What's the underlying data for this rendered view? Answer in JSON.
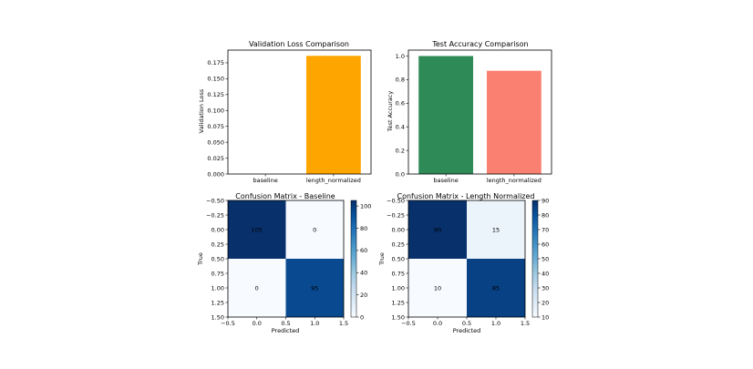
{
  "chart_data": [
    {
      "type": "bar",
      "title": "Validation Loss Comparison",
      "xlabel": "",
      "ylabel": "Validation Loss",
      "categories": [
        "baseline",
        "length_normalized"
      ],
      "values": [
        0.0,
        0.186
      ],
      "colors": [
        "#ffa500",
        "#ffa500"
      ],
      "ylim": [
        0,
        0.195
      ],
      "yticks": [
        "0.000",
        "0.025",
        "0.050",
        "0.075",
        "0.100",
        "0.125",
        "0.150",
        "0.175"
      ]
    },
    {
      "type": "bar",
      "title": "Test Accuracy Comparison",
      "xlabel": "",
      "ylabel": "Test Accuracy",
      "categories": [
        "baseline",
        "length_normalized"
      ],
      "values": [
        1.0,
        0.875
      ],
      "colors": [
        "#2e8b57",
        "#fa8072"
      ],
      "ylim": [
        0,
        1.05
      ],
      "yticks": [
        "0.0",
        "0.2",
        "0.4",
        "0.6",
        "0.8",
        "1.0"
      ]
    },
    {
      "type": "heatmap",
      "title": "Confusion Matrix - Baseline",
      "xlabel": "Predicted",
      "ylabel": "True",
      "matrix": [
        [
          105,
          0
        ],
        [
          0,
          95
        ]
      ],
      "vmin": 0,
      "vmax": 105,
      "xticks": [
        "−0.5",
        "0.0",
        "0.5",
        "1.0",
        "1.5"
      ],
      "yticks": [
        "−0.50",
        "−0.25",
        "0.00",
        "0.25",
        "0.50",
        "0.75",
        "1.00",
        "1.25",
        "1.50"
      ],
      "colorbar_ticks": [
        "0",
        "20",
        "40",
        "60",
        "80",
        "100"
      ],
      "colormap": "Blues"
    },
    {
      "type": "heatmap",
      "title": "Confusion Matrix - Length Normalized",
      "xlabel": "Predicted",
      "ylabel": "True",
      "matrix": [
        [
          90,
          15
        ],
        [
          10,
          85
        ]
      ],
      "vmin": 10,
      "vmax": 90,
      "xticks": [
        "−0.5",
        "0.0",
        "0.5",
        "1.0",
        "1.5"
      ],
      "yticks": [
        "−0.50",
        "−0.25",
        "0.00",
        "0.25",
        "0.50",
        "0.75",
        "1.00",
        "1.25",
        "1.50"
      ],
      "colorbar_ticks": [
        "10",
        "20",
        "30",
        "40",
        "50",
        "60",
        "70",
        "80",
        "90"
      ],
      "colormap": "Blues"
    }
  ]
}
